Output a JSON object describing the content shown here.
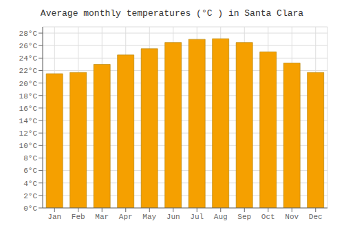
{
  "chart_data": {
    "type": "bar",
    "title": "Average monthly temperatures (°C ) in Santa Clara",
    "categories": [
      "Jan",
      "Feb",
      "Mar",
      "Apr",
      "May",
      "Jun",
      "Jul",
      "Aug",
      "Sep",
      "Oct",
      "Nov",
      "Dec"
    ],
    "values": [
      21.5,
      21.7,
      23.0,
      24.5,
      25.5,
      26.5,
      27.0,
      27.1,
      26.5,
      25.0,
      23.2,
      21.7
    ],
    "color": "#F5A000",
    "ylim": [
      0,
      29
    ],
    "yticks": [
      {
        "value": 0,
        "label": "0°C"
      },
      {
        "value": 2,
        "label": "2°C"
      },
      {
        "value": 4,
        "label": "4°C"
      },
      {
        "value": 6,
        "label": "6°C"
      },
      {
        "value": 8,
        "label": "8°C"
      },
      {
        "value": 10,
        "label": "10°C"
      },
      {
        "value": 12,
        "label": "12°C"
      },
      {
        "value": 14,
        "label": "14°C"
      },
      {
        "value": 16,
        "label": "16°C"
      },
      {
        "value": 18,
        "label": "18°C"
      },
      {
        "value": 20,
        "label": "20°C"
      },
      {
        "value": 22,
        "label": "22°C"
      },
      {
        "value": 24,
        "label": "24°C"
      },
      {
        "value": 26,
        "label": "26°C"
      },
      {
        "value": 28,
        "label": "28°C"
      }
    ],
    "grid": true
  }
}
